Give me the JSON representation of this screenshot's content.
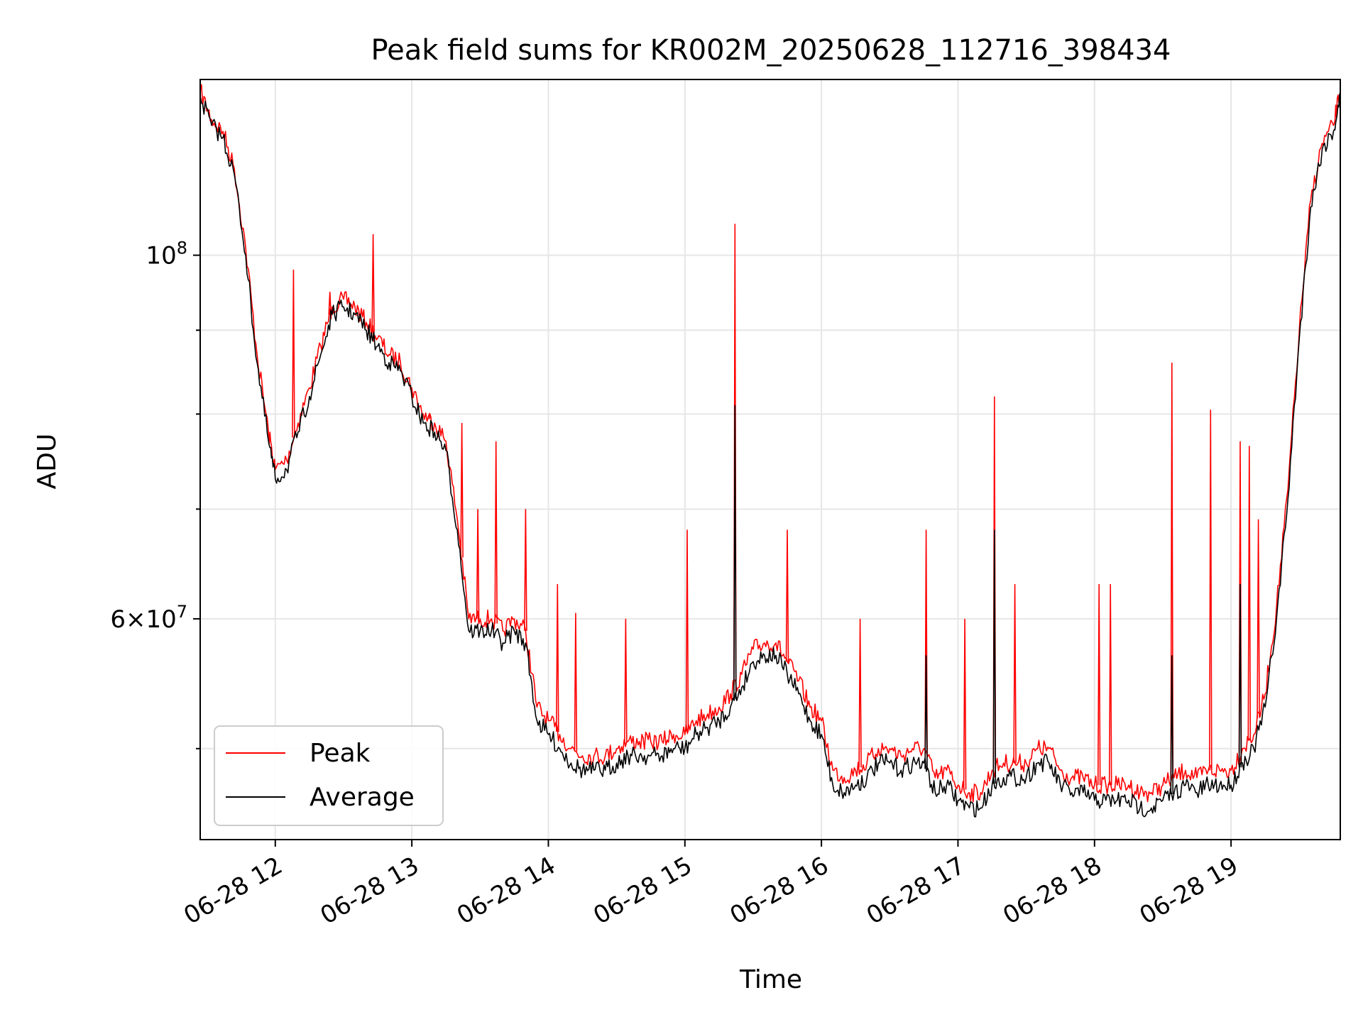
{
  "chart_data": {
    "type": "line",
    "title": "Peak field sums for KR002M_20250628_112716_398434",
    "xlabel": "Time",
    "ylabel": "ADU",
    "y_scale": "log",
    "ylim": [
      44000000,
      128000000
    ],
    "xlim": [
      "2025-06-28 11:27",
      "2025-06-28 19:48"
    ],
    "x_ticks": [
      "2025-06-28 12:00",
      "2025-06-28 13:00",
      "2025-06-28 14:00",
      "2025-06-28 15:00",
      "2025-06-28 16:00",
      "2025-06-28 17:00",
      "2025-06-28 18:00",
      "2025-06-28 19:00"
    ],
    "x_tick_labels": [
      "06-28 12",
      "06-28 13",
      "06-28 14",
      "06-28 15",
      "06-28 16",
      "06-28 17",
      "06-28 18",
      "06-28 19"
    ],
    "y_major_ticks": [
      60000000,
      100000000
    ],
    "y_minor_ticks": [
      50000000,
      70000000,
      80000000,
      90000000
    ],
    "grid": true,
    "legend_position": "lower-left",
    "colors": {
      "Peak": "#ff0000",
      "Average": "#000000"
    },
    "series": [
      {
        "name": "Peak",
        "points": [
          [
            "2025-06-28 11:27",
            126000000
          ],
          [
            "2025-06-28 11:32",
            121000000
          ],
          [
            "2025-06-28 11:37",
            119000000
          ],
          [
            "2025-06-28 11:42",
            113000000
          ],
          [
            "2025-06-28 11:47",
            101000000
          ],
          [
            "2025-06-28 11:52",
            87000000
          ],
          [
            "2025-06-28 11:57",
            78000000
          ],
          [
            "2025-06-28 12:00",
            74000000
          ],
          [
            "2025-06-28 12:05",
            75000000
          ],
          [
            "2025-06-28 12:10",
            79000000
          ],
          [
            "2025-06-28 12:15",
            83000000
          ],
          [
            "2025-06-28 12:20",
            88000000
          ],
          [
            "2025-06-28 12:25",
            93000000
          ],
          [
            "2025-06-28 12:30",
            94000000
          ],
          [
            "2025-06-28 12:35",
            93000000
          ],
          [
            "2025-06-28 12:40",
            91000000
          ],
          [
            "2025-06-28 12:45",
            89000000
          ],
          [
            "2025-06-28 12:50",
            87000000
          ],
          [
            "2025-06-28 12:55",
            86000000
          ],
          [
            "2025-06-28 13:00",
            83000000
          ],
          [
            "2025-06-28 13:05",
            80000000
          ],
          [
            "2025-06-28 13:10",
            79000000
          ],
          [
            "2025-06-28 13:15",
            77000000
          ],
          [
            "2025-06-28 13:20",
            69000000
          ],
          [
            "2025-06-28 13:25",
            60000000
          ],
          [
            "2025-06-28 13:30",
            60000000
          ],
          [
            "2025-06-28 13:35",
            60000000
          ],
          [
            "2025-06-28 13:40",
            59000000
          ],
          [
            "2025-06-28 13:45",
            60000000
          ],
          [
            "2025-06-28 13:50",
            59000000
          ],
          [
            "2025-06-28 13:55",
            53000000
          ],
          [
            "2025-06-28 14:00",
            52000000
          ],
          [
            "2025-06-28 14:05",
            51000000
          ],
          [
            "2025-06-28 14:10",
            50000000
          ],
          [
            "2025-06-28 14:15",
            49500000
          ],
          [
            "2025-06-28 14:20",
            49500000
          ],
          [
            "2025-06-28 14:25",
            49500000
          ],
          [
            "2025-06-28 14:30",
            50000000
          ],
          [
            "2025-06-28 14:35",
            50500000
          ],
          [
            "2025-06-28 14:40",
            50500000
          ],
          [
            "2025-06-28 14:45",
            50500000
          ],
          [
            "2025-06-28 14:50",
            50500000
          ],
          [
            "2025-06-28 14:55",
            51000000
          ],
          [
            "2025-06-28 15:00",
            51000000
          ],
          [
            "2025-06-28 15:05",
            52000000
          ],
          [
            "2025-06-28 15:10",
            52500000
          ],
          [
            "2025-06-28 15:15",
            53000000
          ],
          [
            "2025-06-28 15:20",
            54000000
          ],
          [
            "2025-06-28 15:25",
            55500000
          ],
          [
            "2025-06-28 15:30",
            57500000
          ],
          [
            "2025-06-28 15:35",
            58000000
          ],
          [
            "2025-06-28 15:40",
            58000000
          ],
          [
            "2025-06-28 15:45",
            56500000
          ],
          [
            "2025-06-28 15:50",
            55000000
          ],
          [
            "2025-06-28 15:55",
            53000000
          ],
          [
            "2025-06-28 16:00",
            52000000
          ],
          [
            "2025-06-28 16:05",
            48500000
          ],
          [
            "2025-06-28 16:10",
            48000000
          ],
          [
            "2025-06-28 16:15",
            48500000
          ],
          [
            "2025-06-28 16:20",
            49000000
          ],
          [
            "2025-06-28 16:25",
            50000000
          ],
          [
            "2025-06-28 16:30",
            50000000
          ],
          [
            "2025-06-28 16:35",
            49500000
          ],
          [
            "2025-06-28 16:40",
            50000000
          ],
          [
            "2025-06-28 16:45",
            50000000
          ],
          [
            "2025-06-28 16:50",
            48000000
          ],
          [
            "2025-06-28 16:55",
            48500000
          ],
          [
            "2025-06-28 17:00",
            47500000
          ],
          [
            "2025-06-28 17:05",
            47000000
          ],
          [
            "2025-06-28 17:10",
            47000000
          ],
          [
            "2025-06-28 17:15",
            48500000
          ],
          [
            "2025-06-28 17:20",
            49000000
          ],
          [
            "2025-06-28 17:25",
            49000000
          ],
          [
            "2025-06-28 17:30",
            49000000
          ],
          [
            "2025-06-28 17:35",
            50000000
          ],
          [
            "2025-06-28 17:40",
            50000000
          ],
          [
            "2025-06-28 17:45",
            48500000
          ],
          [
            "2025-06-28 17:50",
            48000000
          ],
          [
            "2025-06-28 17:55",
            48000000
          ],
          [
            "2025-06-28 18:00",
            47500000
          ],
          [
            "2025-06-28 18:05",
            47500000
          ],
          [
            "2025-06-28 18:10",
            47500000
          ],
          [
            "2025-06-28 18:15",
            47500000
          ],
          [
            "2025-06-28 18:20",
            47000000
          ],
          [
            "2025-06-28 18:25",
            47000000
          ],
          [
            "2025-06-28 18:30",
            47500000
          ],
          [
            "2025-06-28 18:35",
            48000000
          ],
          [
            "2025-06-28 18:40",
            48500000
          ],
          [
            "2025-06-28 18:45",
            48000000
          ],
          [
            "2025-06-28 18:50",
            48500000
          ],
          [
            "2025-06-28 18:55",
            48500000
          ],
          [
            "2025-06-28 19:00",
            48500000
          ],
          [
            "2025-06-28 19:05",
            50000000
          ],
          [
            "2025-06-28 19:10",
            51000000
          ],
          [
            "2025-06-28 19:15",
            54000000
          ],
          [
            "2025-06-28 19:20",
            61000000
          ],
          [
            "2025-06-28 19:25",
            72000000
          ],
          [
            "2025-06-28 19:30",
            90000000
          ],
          [
            "2025-06-28 19:35",
            108000000
          ],
          [
            "2025-06-28 19:40",
            117000000
          ],
          [
            "2025-06-28 19:45",
            120000000
          ],
          [
            "2025-06-28 19:48",
            126000000
          ]
        ],
        "spikes": [
          [
            "2025-06-28 12:08",
            98000000
          ],
          [
            "2025-06-28 12:24",
            95000000
          ],
          [
            "2025-06-28 12:43",
            103000000
          ],
          [
            "2025-06-28 13:08",
            80000000
          ],
          [
            "2025-06-28 13:22",
            79000000
          ],
          [
            "2025-06-28 13:29",
            70000000
          ],
          [
            "2025-06-28 13:37",
            77000000
          ],
          [
            "2025-06-28 13:50",
            70000000
          ],
          [
            "2025-06-28 14:04",
            63000000
          ],
          [
            "2025-06-28 14:12",
            60500000
          ],
          [
            "2025-06-28 14:34",
            60000000
          ],
          [
            "2025-06-28 15:01",
            68000000
          ],
          [
            "2025-06-28 15:22",
            104500000
          ],
          [
            "2025-06-28 15:45",
            68000000
          ],
          [
            "2025-06-28 16:17",
            60000000
          ],
          [
            "2025-06-28 16:46",
            68000000
          ],
          [
            "2025-06-28 17:03",
            60000000
          ],
          [
            "2025-06-28 17:16",
            82000000
          ],
          [
            "2025-06-28 17:25",
            63000000
          ],
          [
            "2025-06-28 18:02",
            63000000
          ],
          [
            "2025-06-28 18:07",
            63000000
          ],
          [
            "2025-06-28 18:34",
            86000000
          ],
          [
            "2025-06-28 18:51",
            80500000
          ],
          [
            "2025-06-28 19:04",
            77000000
          ],
          [
            "2025-06-28 19:08",
            76500000
          ],
          [
            "2025-06-28 19:12",
            69000000
          ]
        ]
      },
      {
        "name": "Average",
        "points": [
          [
            "2025-06-28 11:27",
            125000000
          ],
          [
            "2025-06-28 11:32",
            120000000
          ],
          [
            "2025-06-28 11:37",
            118000000
          ],
          [
            "2025-06-28 11:42",
            112000000
          ],
          [
            "2025-06-28 11:47",
            100000000
          ],
          [
            "2025-06-28 11:52",
            86000000
          ],
          [
            "2025-06-28 11:57",
            77000000
          ],
          [
            "2025-06-28 12:00",
            73000000
          ],
          [
            "2025-06-28 12:05",
            74000000
          ],
          [
            "2025-06-28 12:10",
            78000000
          ],
          [
            "2025-06-28 12:15",
            82000000
          ],
          [
            "2025-06-28 12:20",
            87000000
          ],
          [
            "2025-06-28 12:25",
            92000000
          ],
          [
            "2025-06-28 12:30",
            93000000
          ],
          [
            "2025-06-28 12:35",
            92000000
          ],
          [
            "2025-06-28 12:40",
            90000000
          ],
          [
            "2025-06-28 12:45",
            88000000
          ],
          [
            "2025-06-28 12:50",
            86000000
          ],
          [
            "2025-06-28 12:55",
            85000000
          ],
          [
            "2025-06-28 13:00",
            82000000
          ],
          [
            "2025-06-28 13:05",
            79000000
          ],
          [
            "2025-06-28 13:10",
            78000000
          ],
          [
            "2025-06-28 13:15",
            76000000
          ],
          [
            "2025-06-28 13:20",
            68000000
          ],
          [
            "2025-06-28 13:25",
            59000000
          ],
          [
            "2025-06-28 13:30",
            59000000
          ],
          [
            "2025-06-28 13:35",
            59000000
          ],
          [
            "2025-06-28 13:40",
            58000000
          ],
          [
            "2025-06-28 13:45",
            59000000
          ],
          [
            "2025-06-28 13:50",
            58000000
          ],
          [
            "2025-06-28 13:55",
            52000000
          ],
          [
            "2025-06-28 14:00",
            51000000
          ],
          [
            "2025-06-28 14:05",
            50000000
          ],
          [
            "2025-06-28 14:10",
            49000000
          ],
          [
            "2025-06-28 14:15",
            48500000
          ],
          [
            "2025-06-28 14:20",
            48500000
          ],
          [
            "2025-06-28 14:25",
            48500000
          ],
          [
            "2025-06-28 14:30",
            49000000
          ],
          [
            "2025-06-28 14:35",
            49500000
          ],
          [
            "2025-06-28 14:40",
            49500000
          ],
          [
            "2025-06-28 14:45",
            49500000
          ],
          [
            "2025-06-28 14:50",
            49500000
          ],
          [
            "2025-06-28 14:55",
            50000000
          ],
          [
            "2025-06-28 15:00",
            50000000
          ],
          [
            "2025-06-28 15:05",
            51000000
          ],
          [
            "2025-06-28 15:10",
            51500000
          ],
          [
            "2025-06-28 15:15",
            52000000
          ],
          [
            "2025-06-28 15:20",
            53000000
          ],
          [
            "2025-06-28 15:25",
            54500000
          ],
          [
            "2025-06-28 15:30",
            56500000
          ],
          [
            "2025-06-28 15:35",
            57000000
          ],
          [
            "2025-06-28 15:40",
            57000000
          ],
          [
            "2025-06-28 15:45",
            55500000
          ],
          [
            "2025-06-28 15:50",
            54000000
          ],
          [
            "2025-06-28 15:55",
            52000000
          ],
          [
            "2025-06-28 16:00",
            51000000
          ],
          [
            "2025-06-28 16:05",
            47500000
          ],
          [
            "2025-06-28 16:10",
            47000000
          ],
          [
            "2025-06-28 16:15",
            47500000
          ],
          [
            "2025-06-28 16:20",
            48000000
          ],
          [
            "2025-06-28 16:25",
            49000000
          ],
          [
            "2025-06-28 16:30",
            49000000
          ],
          [
            "2025-06-28 16:35",
            48500000
          ],
          [
            "2025-06-28 16:40",
            49000000
          ],
          [
            "2025-06-28 16:45",
            49000000
          ],
          [
            "2025-06-28 16:50",
            47000000
          ],
          [
            "2025-06-28 16:55",
            47500000
          ],
          [
            "2025-06-28 17:00",
            46500000
          ],
          [
            "2025-06-28 17:05",
            46000000
          ],
          [
            "2025-06-28 17:10",
            46000000
          ],
          [
            "2025-06-28 17:15",
            47500000
          ],
          [
            "2025-06-28 17:20",
            48000000
          ],
          [
            "2025-06-28 17:25",
            48000000
          ],
          [
            "2025-06-28 17:30",
            48000000
          ],
          [
            "2025-06-28 17:35",
            49000000
          ],
          [
            "2025-06-28 17:40",
            49000000
          ],
          [
            "2025-06-28 17:45",
            47500000
          ],
          [
            "2025-06-28 17:50",
            47000000
          ],
          [
            "2025-06-28 17:55",
            47000000
          ],
          [
            "2025-06-28 18:00",
            46500000
          ],
          [
            "2025-06-28 18:05",
            46500000
          ],
          [
            "2025-06-28 18:10",
            46500000
          ],
          [
            "2025-06-28 18:15",
            46500000
          ],
          [
            "2025-06-28 18:20",
            46000000
          ],
          [
            "2025-06-28 18:25",
            46000000
          ],
          [
            "2025-06-28 18:30",
            46500000
          ],
          [
            "2025-06-28 18:35",
            47000000
          ],
          [
            "2025-06-28 18:40",
            47500000
          ],
          [
            "2025-06-28 18:45",
            47000000
          ],
          [
            "2025-06-28 18:50",
            47500000
          ],
          [
            "2025-06-28 18:55",
            47500000
          ],
          [
            "2025-06-28 19:00",
            47500000
          ],
          [
            "2025-06-28 19:05",
            49000000
          ],
          [
            "2025-06-28 19:10",
            50000000
          ],
          [
            "2025-06-28 19:15",
            53000000
          ],
          [
            "2025-06-28 19:20",
            60000000
          ],
          [
            "2025-06-28 19:25",
            71000000
          ],
          [
            "2025-06-28 19:30",
            89000000
          ],
          [
            "2025-06-28 19:35",
            107000000
          ],
          [
            "2025-06-28 19:40",
            116000000
          ],
          [
            "2025-06-28 19:45",
            119000000
          ],
          [
            "2025-06-28 19:48",
            125000000
          ]
        ],
        "spikes": [
          [
            "2025-06-28 15:22",
            81000000
          ],
          [
            "2025-06-28 16:46",
            57000000
          ],
          [
            "2025-06-28 17:16",
            68000000
          ],
          [
            "2025-06-28 18:34",
            57000000
          ],
          [
            "2025-06-28 19:04",
            63000000
          ]
        ]
      }
    ]
  }
}
